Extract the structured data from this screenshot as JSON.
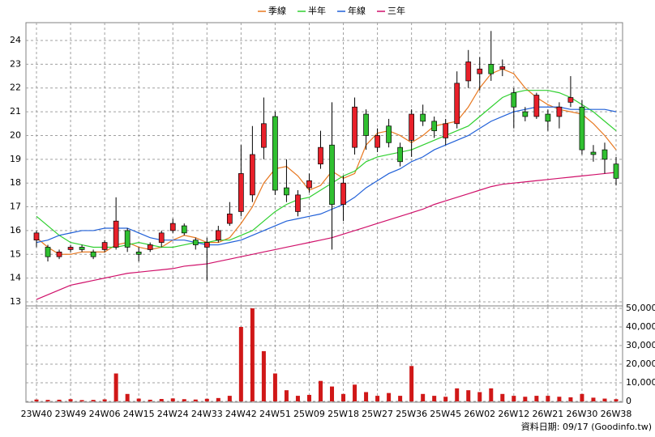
{
  "chart_data": {
    "type": "candlestick",
    "legend_position": "top",
    "grid": true,
    "up_color": "#e8202a",
    "down_color": "#30c030",
    "categories": [
      "23W40",
      null,
      null,
      "23W49",
      null,
      null,
      "24W06",
      null,
      null,
      "24W15",
      null,
      null,
      "24W24",
      null,
      null,
      "24W33",
      null,
      null,
      "24W42",
      null,
      null,
      "24W51",
      null,
      null,
      "25W09",
      null,
      null,
      "25W18",
      null,
      null,
      "25W27",
      null,
      null,
      "25W36",
      null,
      null,
      "25W45",
      null,
      null,
      "26W02",
      null,
      null,
      "26W12",
      null,
      null,
      "26W21",
      null,
      null,
      "26W30",
      null,
      null,
      "26W38"
    ],
    "ylim": [
      12.83,
      24.75
    ],
    "yticks": [
      13,
      14,
      15,
      16,
      17,
      18,
      19,
      20,
      21,
      22,
      23,
      24
    ],
    "candles": {
      "open": [
        15.6,
        15.3,
        14.9,
        15.2,
        15.3,
        15.1,
        15.2,
        15.3,
        16.0,
        15.1,
        15.2,
        15.5,
        16.0,
        16.2,
        15.6,
        15.3,
        15.6,
        16.3,
        16.8,
        17.5,
        19.5,
        20.8,
        17.8,
        16.8,
        17.8,
        18.8,
        19.6,
        17.1,
        19.5,
        20.9,
        19.5,
        20.4,
        19.5,
        19.8,
        20.9,
        20.6,
        19.9,
        20.5,
        22.3,
        22.6,
        23.0,
        22.8,
        21.8,
        21.0,
        20.8,
        20.9,
        20.8,
        21.4,
        21.2,
        19.3,
        19.4,
        18.8
      ],
      "high": [
        16.0,
        15.4,
        15.2,
        15.4,
        15.4,
        15.2,
        15.6,
        17.4,
        16.1,
        15.3,
        15.5,
        16.0,
        16.5,
        16.3,
        15.7,
        15.7,
        16.2,
        17.2,
        19.6,
        20.4,
        21.6,
        21.0,
        19.0,
        17.7,
        18.4,
        20.2,
        21.4,
        18.3,
        21.6,
        21.1,
        20.3,
        20.7,
        19.7,
        21.1,
        21.3,
        20.8,
        20.7,
        22.7,
        23.6,
        23.3,
        24.4,
        23.2,
        22.0,
        21.2,
        21.8,
        21.1,
        21.4,
        22.5,
        21.5,
        19.6,
        19.7,
        19.1
      ],
      "low": [
        15.3,
        14.7,
        14.8,
        15.1,
        15.1,
        14.8,
        15.1,
        15.2,
        15.1,
        14.7,
        15.1,
        15.3,
        15.9,
        15.8,
        15.2,
        13.9,
        15.5,
        16.2,
        16.6,
        17.2,
        19.0,
        17.5,
        17.2,
        16.6,
        17.6,
        18.6,
        15.2,
        16.4,
        19.2,
        19.4,
        19.3,
        19.5,
        18.7,
        19.1,
        20.4,
        19.9,
        19.6,
        20.3,
        22.0,
        21.9,
        22.3,
        22.5,
        20.3,
        20.6,
        20.7,
        20.2,
        20.3,
        21.2,
        19.2,
        18.9,
        18.4,
        17.9
      ],
      "close": [
        15.9,
        14.9,
        15.1,
        15.3,
        15.2,
        14.9,
        15.5,
        16.4,
        15.3,
        15.0,
        15.4,
        15.9,
        16.3,
        15.9,
        15.4,
        15.5,
        16.0,
        16.7,
        18.4,
        19.2,
        20.5,
        17.7,
        17.5,
        17.5,
        18.1,
        19.5,
        17.1,
        18.0,
        21.2,
        20.0,
        20.0,
        19.7,
        18.9,
        20.9,
        20.6,
        20.2,
        20.5,
        22.2,
        23.1,
        22.8,
        22.6,
        22.9,
        21.2,
        20.8,
        21.7,
        20.6,
        21.2,
        21.6,
        19.4,
        19.2,
        19.0,
        18.2
      ]
    },
    "series": [
      {
        "name": "季線",
        "color": "#e87820",
        "values": [
          15.7,
          15.3,
          15.0,
          15.0,
          15.1,
          15.1,
          15.1,
          15.4,
          15.5,
          15.3,
          15.2,
          15.3,
          15.6,
          15.8,
          15.7,
          15.5,
          15.5,
          15.7,
          16.3,
          17.0,
          18.0,
          18.6,
          18.7,
          18.3,
          17.7,
          17.9,
          18.5,
          18.2,
          18.4,
          19.6,
          20.1,
          20.2,
          20.0,
          19.7,
          20.0,
          20.4,
          20.5,
          20.6,
          21.2,
          22.0,
          22.6,
          22.8,
          22.6,
          22.0,
          21.6,
          21.3,
          21.1,
          21.0,
          20.9,
          20.5,
          20.0,
          19.4
        ]
      },
      {
        "name": "半年",
        "color": "#30d030",
        "values": [
          16.6,
          16.2,
          15.8,
          15.5,
          15.4,
          15.3,
          15.3,
          15.3,
          15.4,
          15.5,
          15.4,
          15.3,
          15.3,
          15.4,
          15.5,
          15.5,
          15.6,
          15.6,
          15.8,
          16.0,
          16.4,
          16.8,
          17.1,
          17.3,
          17.4,
          17.7,
          18.0,
          18.3,
          18.5,
          18.9,
          19.1,
          19.2,
          19.3,
          19.4,
          19.6,
          19.8,
          20.0,
          20.2,
          20.4,
          20.8,
          21.2,
          21.6,
          21.8,
          21.9,
          21.9,
          21.9,
          21.8,
          21.6,
          21.3,
          21.0,
          20.6,
          20.2
        ]
      },
      {
        "name": "年線",
        "color": "#2060d8",
        "values": [
          15.5,
          15.6,
          15.8,
          15.9,
          16.0,
          16.0,
          16.1,
          16.1,
          16.1,
          15.9,
          15.7,
          15.6,
          15.6,
          15.6,
          15.5,
          15.4,
          15.4,
          15.5,
          15.6,
          15.8,
          16.0,
          16.2,
          16.4,
          16.5,
          16.6,
          16.7,
          16.9,
          17.1,
          17.4,
          17.8,
          18.1,
          18.4,
          18.6,
          18.9,
          19.1,
          19.4,
          19.6,
          19.8,
          20.0,
          20.3,
          20.6,
          20.8,
          21.0,
          21.1,
          21.2,
          21.2,
          21.2,
          21.1,
          21.1,
          21.1,
          21.1,
          21.0
        ]
      },
      {
        "name": "三年",
        "color": "#d0106a",
        "values": [
          13.1,
          13.3,
          13.5,
          13.7,
          13.8,
          13.9,
          14.0,
          14.1,
          14.2,
          14.25,
          14.3,
          14.35,
          14.4,
          14.5,
          14.55,
          14.6,
          14.7,
          14.8,
          14.9,
          15.0,
          15.1,
          15.2,
          15.3,
          15.4,
          15.5,
          15.6,
          15.7,
          15.85,
          16.0,
          16.15,
          16.3,
          16.45,
          16.6,
          16.75,
          16.9,
          17.1,
          17.25,
          17.4,
          17.55,
          17.7,
          17.85,
          17.95,
          18.0,
          18.05,
          18.1,
          18.15,
          18.2,
          18.25,
          18.3,
          18.35,
          18.4,
          18.45
        ]
      }
    ],
    "volume": {
      "color": "#d01818",
      "ylim": [
        0,
        50000
      ],
      "yticks": [
        0,
        {
          "value": 10000,
          "label": "10,000"
        },
        {
          "value": 20000,
          "label": "20,000"
        },
        {
          "value": 30000,
          "label": "30,000"
        },
        {
          "value": 40000,
          "label": "40,000"
        },
        {
          "value": 50000,
          "label": "50,000"
        }
      ],
      "values": [
        1000,
        800,
        900,
        1200,
        700,
        800,
        1100,
        15000,
        4000,
        1500,
        900,
        1300,
        1600,
        1200,
        1000,
        1400,
        1800,
        3000,
        40000,
        50000,
        27000,
        15000,
        6000,
        3000,
        3500,
        11000,
        8000,
        4000,
        9000,
        5000,
        3000,
        4500,
        3000,
        19000,
        4000,
        3000,
        2500,
        7000,
        6000,
        5000,
        7000,
        4000,
        3000,
        2500,
        3000,
        3000,
        2500,
        2200,
        4000,
        2000,
        1500,
        1200
      ]
    },
    "source_note": "資料日期: 09/17 (Goodinfo.tw)"
  }
}
